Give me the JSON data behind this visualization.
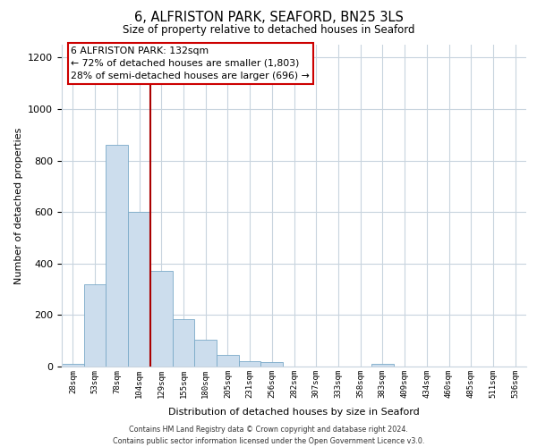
{
  "title": "6, ALFRISTON PARK, SEAFORD, BN25 3LS",
  "subtitle": "Size of property relative to detached houses in Seaford",
  "xlabel": "Distribution of detached houses by size in Seaford",
  "ylabel": "Number of detached properties",
  "bin_labels": [
    "28sqm",
    "53sqm",
    "78sqm",
    "104sqm",
    "129sqm",
    "155sqm",
    "180sqm",
    "205sqm",
    "231sqm",
    "256sqm",
    "282sqm",
    "307sqm",
    "333sqm",
    "358sqm",
    "383sqm",
    "409sqm",
    "434sqm",
    "460sqm",
    "485sqm",
    "511sqm",
    "536sqm"
  ],
  "bar_values": [
    10,
    320,
    860,
    600,
    370,
    185,
    105,
    45,
    20,
    18,
    0,
    0,
    0,
    0,
    10,
    0,
    0,
    0,
    0,
    0,
    0
  ],
  "bar_color": "#ccdded",
  "bar_edge_color": "#7aaac8",
  "highlight_bin_index": 4,
  "highlight_color": "#aa0000",
  "ylim": [
    0,
    1250
  ],
  "yticks": [
    0,
    200,
    400,
    600,
    800,
    1000,
    1200
  ],
  "annotation_title": "6 ALFRISTON PARK: 132sqm",
  "annotation_line1": "← 72% of detached houses are smaller (1,803)",
  "annotation_line2": "28% of semi-detached houses are larger (696) →",
  "annotation_box_color": "#ffffff",
  "annotation_box_edge": "#cc0000",
  "footer1": "Contains HM Land Registry data © Crown copyright and database right 2024.",
  "footer2": "Contains public sector information licensed under the Open Government Licence v3.0.",
  "background_color": "#ffffff",
  "grid_color": "#c8d4de"
}
